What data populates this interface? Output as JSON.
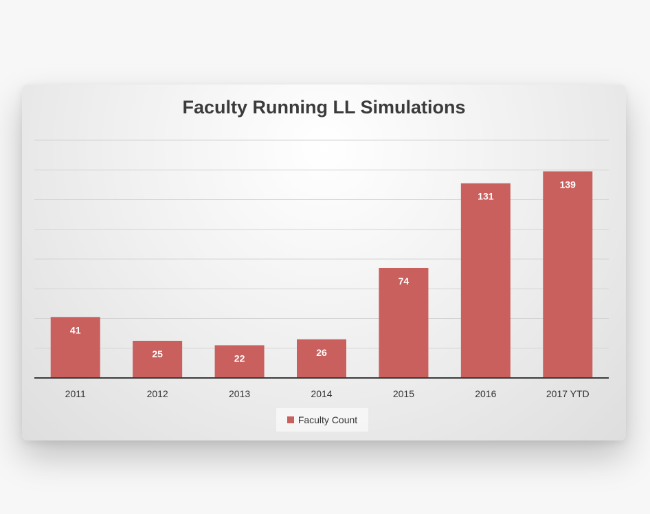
{
  "chart_data": {
    "type": "bar",
    "title": "Faculty Running LL Simulations",
    "categories": [
      "2011",
      "2012",
      "2013",
      "2014",
      "2015",
      "2016",
      "2017 YTD"
    ],
    "series": [
      {
        "name": "Faculty Count",
        "values": [
          41,
          25,
          22,
          26,
          74,
          131,
          139
        ]
      }
    ],
    "ylim": [
      0,
      160
    ],
    "grid": true,
    "data_labels": true,
    "legend_position": "bottom",
    "bar_color": "#c9605d",
    "xlabel": "",
    "ylabel": ""
  }
}
